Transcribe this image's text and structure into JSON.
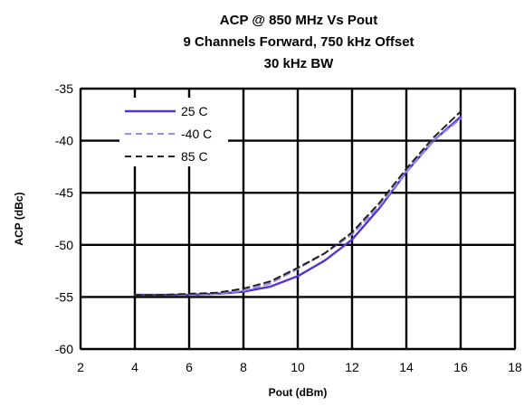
{
  "chart_data": {
    "type": "line",
    "title_lines": [
      "ACP @ 850 MHz Vs Pout",
      "9 Channels Forward, 750 kHz Offset",
      "30 kHz BW"
    ],
    "xlabel": "Pout (dBm)",
    "ylabel": "ACP (dBc)",
    "xlim": [
      2,
      18
    ],
    "ylim": [
      -60,
      -35
    ],
    "x_ticks": [
      "2",
      "4",
      "6",
      "8",
      "10",
      "12",
      "14",
      "16",
      "18"
    ],
    "y_ticks": [
      "-35",
      "-40",
      "-45",
      "-50",
      "-55",
      "-60"
    ],
    "grid": true,
    "legend_position": "top-left",
    "series": [
      {
        "name": "25 C",
        "color": "#5533cc",
        "style": "solid",
        "x": [
          4,
          5,
          6,
          7,
          8,
          9,
          10,
          11,
          12,
          13,
          14,
          15,
          16
        ],
        "y": [
          -54.8,
          -54.8,
          -54.8,
          -54.7,
          -54.5,
          -54.0,
          -53.0,
          -51.5,
          -49.5,
          -46.5,
          -43.0,
          -40.0,
          -37.7
        ]
      },
      {
        "name": "-40 C",
        "color": "#9988ee",
        "style": "dash",
        "x": [
          4,
          5,
          6,
          7,
          8,
          9,
          10,
          11,
          12,
          13,
          14,
          15,
          16
        ],
        "y": [
          -54.8,
          -54.8,
          -54.8,
          -54.7,
          -54.4,
          -53.7,
          -52.3,
          -50.8,
          -49.0,
          -46.3,
          -43.0,
          -40.0,
          -37.9
        ]
      },
      {
        "name": "85 C",
        "color": "#222222",
        "style": "dash",
        "x": [
          4,
          5,
          6,
          7,
          8,
          9,
          10,
          11,
          12,
          13,
          14,
          15,
          16
        ],
        "y": [
          -54.8,
          -54.8,
          -54.7,
          -54.6,
          -54.2,
          -53.5,
          -52.2,
          -50.8,
          -48.8,
          -46.0,
          -42.7,
          -39.7,
          -37.2
        ]
      }
    ]
  }
}
